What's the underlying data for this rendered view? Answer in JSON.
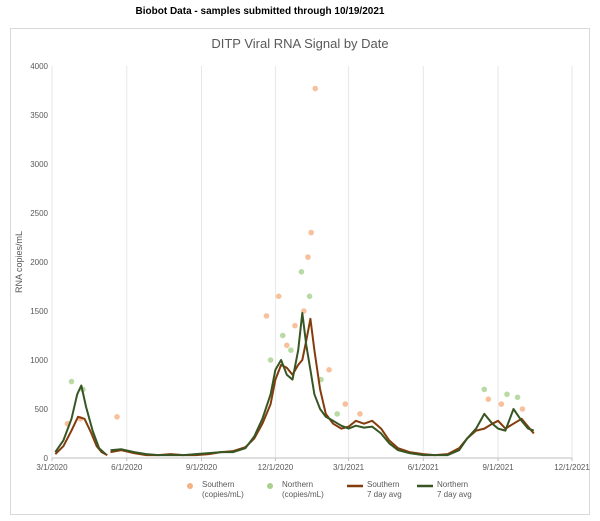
{
  "header": {
    "text": "Biobot Data - samples submitted through 10/19/2021"
  },
  "chart_data": {
    "type": "line",
    "title": "DITP Viral RNA Signal by Date",
    "xlabel": "",
    "ylabel": "RNA copies/mL",
    "ylim": [
      0,
      4000
    ],
    "xlim": [
      "2020-03-01",
      "2021-12-01"
    ],
    "yticks": [
      "0",
      "500",
      "1000",
      "1500",
      "2000",
      "2500",
      "3000",
      "3500",
      "4000"
    ],
    "xticks": [
      "3/1/2020",
      "6/1/2020",
      "9/1/2020",
      "12/1/2020",
      "3/1/2021",
      "6/1/2021",
      "9/1/2021",
      "12/1/2021"
    ],
    "grid": "vertical",
    "legend_position": "bottom",
    "legend": [
      {
        "label_line1": "Southern",
        "label_line2": "(copies/mL)",
        "marker": "dot",
        "color": "#f4b183"
      },
      {
        "label_line1": "Northern",
        "label_line2": "(copies/mL)",
        "marker": "dot",
        "color": "#a9d18e"
      },
      {
        "label_line1": "Southern",
        "label_line2": "7 day avg",
        "marker": "line",
        "color": "#843c0c"
      },
      {
        "label_line1": "Northern",
        "label_line2": "7 day avg",
        "marker": "line",
        "color": "#375623"
      }
    ],
    "series": [
      {
        "name": "Southern 7 day avg",
        "color": "#843c0c",
        "style": "line",
        "x": [
          "2020-03-05",
          "2020-03-15",
          "2020-03-25",
          "2020-04-02",
          "2020-04-10",
          "2020-04-18",
          "2020-04-25",
          "2020-05-01",
          "2020-05-08"
        ],
        "y": [
          40,
          120,
          280,
          420,
          400,
          260,
          120,
          60,
          30
        ]
      },
      {
        "name": "Northern 7 day avg",
        "color": "#375623",
        "style": "line",
        "x": [
          "2020-03-05",
          "2020-03-15",
          "2020-03-25",
          "2020-04-01",
          "2020-04-06",
          "2020-04-12",
          "2020-04-20",
          "2020-04-28",
          "2020-05-06"
        ],
        "y": [
          60,
          180,
          400,
          650,
          740,
          520,
          280,
          100,
          40
        ]
      },
      {
        "name": "Southern 7 day avg",
        "color": "#843c0c",
        "style": "line",
        "x": [
          "2020-05-12",
          "2020-05-25",
          "2020-06-10",
          "2020-06-25",
          "2020-07-10",
          "2020-07-25",
          "2020-08-10",
          "2020-08-25",
          "2020-09-10",
          "2020-09-25",
          "2020-10-10",
          "2020-10-25",
          "2020-11-05",
          "2020-11-15",
          "2020-11-25",
          "2020-12-01",
          "2020-12-08",
          "2020-12-15",
          "2020-12-22",
          "2020-12-29",
          "2021-01-03",
          "2021-01-08",
          "2021-01-13",
          "2021-01-18",
          "2021-01-25",
          "2021-02-01",
          "2021-02-10",
          "2021-02-20",
          "2021-03-01",
          "2021-03-10",
          "2021-03-20",
          "2021-03-30",
          "2021-04-10",
          "2021-04-20",
          "2021-05-01",
          "2021-05-15",
          "2021-06-01",
          "2021-06-15",
          "2021-07-01",
          "2021-07-15",
          "2021-07-25",
          "2021-08-05",
          "2021-08-15",
          "2021-08-25",
          "2021-09-01",
          "2021-09-10",
          "2021-09-20",
          "2021-09-30",
          "2021-10-08",
          "2021-10-15"
        ],
        "y": [
          60,
          80,
          50,
          30,
          30,
          40,
          30,
          30,
          40,
          60,
          70,
          110,
          200,
          350,
          550,
          800,
          950,
          920,
          850,
          950,
          1000,
          1200,
          1420,
          1100,
          700,
          450,
          350,
          300,
          320,
          380,
          350,
          380,
          300,
          180,
          100,
          60,
          40,
          30,
          40,
          100,
          200,
          280,
          300,
          350,
          380,
          300,
          350,
          400,
          320,
          250
        ]
      },
      {
        "name": "Northern 7 day avg",
        "color": "#375623",
        "style": "line",
        "x": [
          "2020-05-12",
          "2020-05-25",
          "2020-06-10",
          "2020-06-25",
          "2020-07-10",
          "2020-07-25",
          "2020-08-10",
          "2020-08-25",
          "2020-09-10",
          "2020-09-25",
          "2020-10-10",
          "2020-10-25",
          "2020-11-05",
          "2020-11-15",
          "2020-11-25",
          "2020-12-01",
          "2020-12-08",
          "2020-12-15",
          "2020-12-22",
          "2020-12-29",
          "2021-01-03",
          "2021-01-08",
          "2021-01-13",
          "2021-01-18",
          "2021-01-25",
          "2021-02-01",
          "2021-02-10",
          "2021-02-20",
          "2021-03-01",
          "2021-03-10",
          "2021-03-20",
          "2021-03-30",
          "2021-04-10",
          "2021-04-20",
          "2021-05-01",
          "2021-05-15",
          "2021-06-01",
          "2021-06-15",
          "2021-07-01",
          "2021-07-15",
          "2021-07-25",
          "2021-08-05",
          "2021-08-15",
          "2021-08-25",
          "2021-09-01",
          "2021-09-10",
          "2021-09-20",
          "2021-09-30",
          "2021-10-08",
          "2021-10-15"
        ],
        "y": [
          80,
          90,
          60,
          40,
          30,
          30,
          30,
          40,
          50,
          60,
          60,
          100,
          220,
          400,
          650,
          900,
          1000,
          850,
          800,
          1100,
          1480,
          1150,
          900,
          650,
          500,
          420,
          380,
          330,
          300,
          330,
          310,
          320,
          250,
          150,
          80,
          50,
          30,
          30,
          30,
          80,
          200,
          300,
          450,
          350,
          300,
          280,
          500,
          380,
          300,
          280
        ]
      }
    ],
    "scatter": [
      {
        "name": "Southern (copies/mL)",
        "color": "#f4b183",
        "x": [
          "2020-03-20",
          "2020-04-05",
          "2020-05-20",
          "2020-11-20",
          "2020-12-05",
          "2020-12-15",
          "2020-12-25",
          "2021-01-05",
          "2021-01-10",
          "2021-01-14",
          "2021-01-19",
          "2021-02-05",
          "2021-02-25",
          "2021-03-15",
          "2021-08-20",
          "2021-09-05",
          "2021-10-01"
        ],
        "y": [
          350,
          400,
          420,
          1450,
          1650,
          1150,
          1350,
          1500,
          2050,
          2300,
          3770,
          900,
          550,
          450,
          600,
          550,
          500
        ]
      },
      {
        "name": "Northern (copies/mL)",
        "color": "#a9d18e",
        "x": [
          "2020-03-25",
          "2020-04-08",
          "2020-11-25",
          "2020-12-10",
          "2020-12-20",
          "2021-01-02",
          "2021-01-12",
          "2021-01-26",
          "2021-02-15",
          "2021-08-15",
          "2021-09-12",
          "2021-09-25"
        ],
        "y": [
          780,
          700,
          1000,
          1250,
          1100,
          1900,
          1650,
          800,
          450,
          700,
          650,
          620
        ]
      }
    ]
  }
}
